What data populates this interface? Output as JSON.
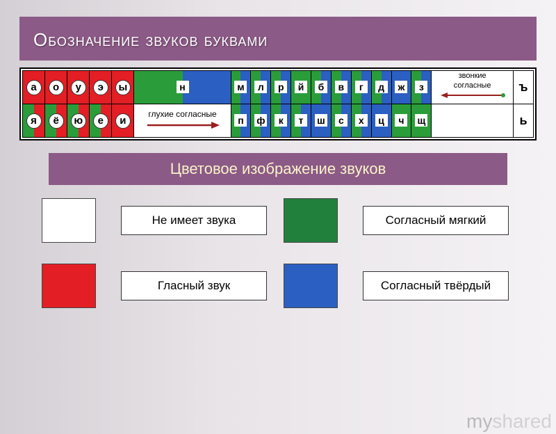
{
  "title": "Обозначение звуков буквами",
  "subtitle": "Цветовое изображение звуков",
  "colors": {
    "red": "#e31e24",
    "green": "#2a9d3a",
    "blue": "#2b5fc2",
    "white": "#ffffff",
    "darkgreen": "#21813c"
  },
  "chart": {
    "row1": {
      "vowels": [
        {
          "letter": "а",
          "left": "#e31e24",
          "right": "#e31e24"
        },
        {
          "letter": "о",
          "left": "#e31e24",
          "right": "#e31e24"
        },
        {
          "letter": "у",
          "left": "#e31e24",
          "right": "#e31e24"
        },
        {
          "letter": "э",
          "left": "#e31e24",
          "right": "#e31e24"
        },
        {
          "letter": "ы",
          "left": "#e31e24",
          "right": "#e31e24"
        }
      ],
      "consonants": [
        {
          "letter": "н",
          "left": "#2a9d3a",
          "right": "#2b5fc2"
        },
        {
          "letter": "м",
          "left": "#2a9d3a",
          "right": "#2b5fc2"
        },
        {
          "letter": "л",
          "left": "#2a9d3a",
          "right": "#2b5fc2"
        },
        {
          "letter": "р",
          "left": "#2a9d3a",
          "right": "#2b5fc2"
        },
        {
          "letter": "й",
          "left": "#2a9d3a",
          "right": "#2a9d3a"
        },
        {
          "letter": "б",
          "left": "#2a9d3a",
          "right": "#2b5fc2"
        },
        {
          "letter": "в",
          "left": "#2a9d3a",
          "right": "#2b5fc2"
        },
        {
          "letter": "г",
          "left": "#2a9d3a",
          "right": "#2b5fc2"
        },
        {
          "letter": "д",
          "left": "#2a9d3a",
          "right": "#2b5fc2"
        },
        {
          "letter": "ж",
          "left": "#2b5fc2",
          "right": "#2b5fc2"
        },
        {
          "letter": "з",
          "left": "#2a9d3a",
          "right": "#2b5fc2"
        }
      ],
      "right_label_1": "звонкие",
      "right_label_2": "согласные",
      "hard": "ъ"
    },
    "row2": {
      "vowels": [
        {
          "letter": "я",
          "left": "#2a9d3a",
          "right": "#e31e24"
        },
        {
          "letter": "ё",
          "left": "#2a9d3a",
          "right": "#e31e24"
        },
        {
          "letter": "ю",
          "left": "#2a9d3a",
          "right": "#e31e24"
        },
        {
          "letter": "е",
          "left": "#2a9d3a",
          "right": "#e31e24"
        },
        {
          "letter": "и",
          "left": "#e31e24",
          "right": "#e31e24"
        }
      ],
      "arrow_label": "глухие согласные",
      "consonants": [
        {
          "letter": "п",
          "left": "#2a9d3a",
          "right": "#2b5fc2"
        },
        {
          "letter": "ф",
          "left": "#2a9d3a",
          "right": "#2b5fc2"
        },
        {
          "letter": "к",
          "left": "#2a9d3a",
          "right": "#2b5fc2"
        },
        {
          "letter": "т",
          "left": "#2a9d3a",
          "right": "#2b5fc2"
        },
        {
          "letter": "ш",
          "left": "#2b5fc2",
          "right": "#2b5fc2"
        },
        {
          "letter": "с",
          "left": "#2a9d3a",
          "right": "#2b5fc2"
        },
        {
          "letter": "х",
          "left": "#2a9d3a",
          "right": "#2b5fc2"
        },
        {
          "letter": "ц",
          "left": "#2b5fc2",
          "right": "#2b5fc2"
        },
        {
          "letter": "ч",
          "left": "#2a9d3a",
          "right": "#2a9d3a"
        },
        {
          "letter": "щ",
          "left": "#2a9d3a",
          "right": "#2a9d3a"
        }
      ],
      "hard": "ь"
    }
  },
  "legend": {
    "items": [
      {
        "color": "#ffffff",
        "label": "Не  имеет звука"
      },
      {
        "color": "#21813c",
        "label": "Согласный мягкий"
      },
      {
        "color": "#e31e24",
        "label": "Гласный звук"
      },
      {
        "color": "#2b5fc2",
        "label": "Согласный твёрдый"
      }
    ]
  },
  "watermark": "myshared"
}
